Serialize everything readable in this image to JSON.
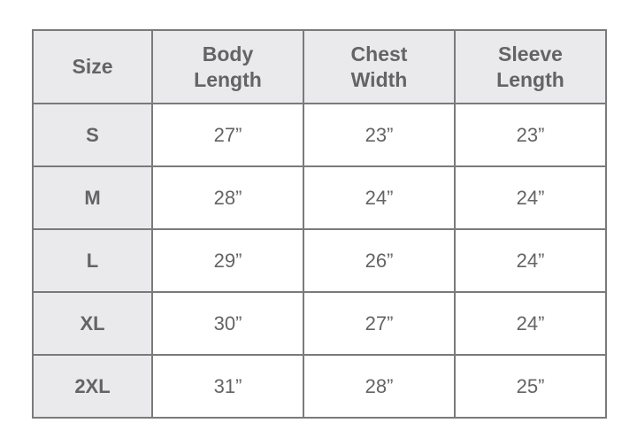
{
  "headers": [
    "Size",
    "Body\nLength",
    "Chest\nWidth",
    "Sleeve\nLength"
  ],
  "header_lines": [
    [
      "Size"
    ],
    [
      "Body",
      "Length"
    ],
    [
      "Chest",
      "Width"
    ],
    [
      "Sleeve",
      "Length"
    ]
  ],
  "rows": [
    [
      "S",
      "27”",
      "23”",
      "23”"
    ],
    [
      "M",
      "28”",
      "24”",
      "24”"
    ],
    [
      "L",
      "29”",
      "26”",
      "24”"
    ],
    [
      "XL",
      "30”",
      "27”",
      "24”"
    ],
    [
      "2XL",
      "31”",
      "28”",
      "25”"
    ]
  ],
  "colors": {
    "header_bg": "#eaeaec",
    "border": "#7a7a7a",
    "text": "#646464"
  }
}
